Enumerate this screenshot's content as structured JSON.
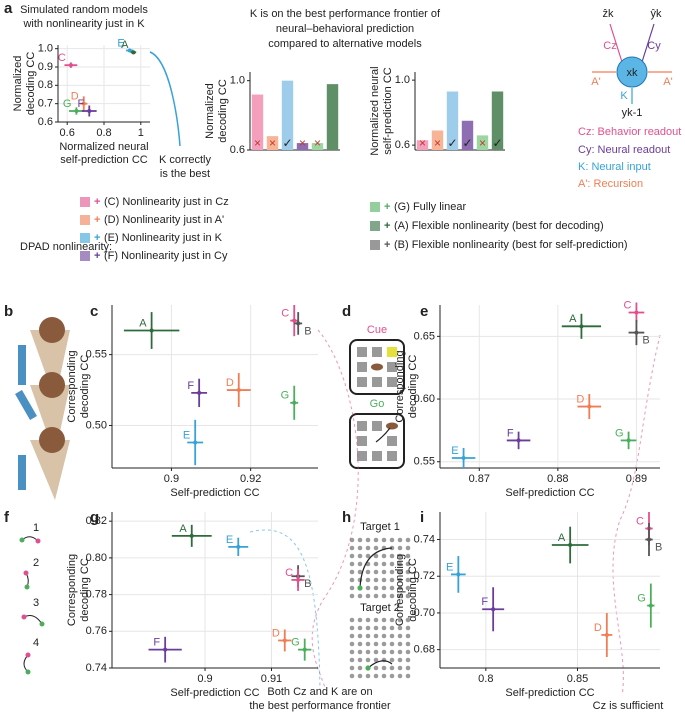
{
  "panel_labels": [
    "a",
    "b",
    "c",
    "d",
    "e",
    "f",
    "g",
    "h",
    "i"
  ],
  "header": [
    "K is on the best performance frontier of",
    "neural–behavioral prediction",
    "compared to alternative models"
  ],
  "annotations": {
    "a_note": [
      "K correctly",
      "is the best"
    ],
    "bottom_left": [
      "Both Cz and K are on",
      "the best performance frontier"
    ],
    "bottom_right": "Cz is sufficient"
  },
  "diagram": {
    "labels": [
      "ẑk",
      "ŷk",
      "Cz",
      "Cy",
      "xk",
      "A'",
      "A'",
      "K",
      "yk-1"
    ],
    "legend": [
      "Cz: Behavior readout",
      "Cy: Neural readout",
      "K: Neural input",
      "A': Recursion"
    ]
  },
  "legend": {
    "title": "DPAD nonlinearity:",
    "items": [
      {
        "marker": "+",
        "text": "(C) Nonlinearity just in Cz",
        "color": "#e0508f"
      },
      {
        "marker": "+",
        "text": "(D) Nonlinearity just in A'",
        "color": "#f07e55"
      },
      {
        "marker": "+",
        "text": "(E) Nonlinearity just in K",
        "color": "#36a2d8"
      },
      {
        "marker": "+",
        "text": "(F) Nonlinearity just in Cy",
        "color": "#6a3d9a"
      },
      {
        "marker": "+",
        "text": "(G) Fully linear",
        "color": "#4cae5c"
      },
      {
        "marker": "+",
        "text": "(A) Flexible nonlinearity (best for decoding)",
        "color": "#2e6b3a"
      },
      {
        "marker": "+",
        "text": "(B) Flexible nonlinearity (best for self-prediction)",
        "color": "#555555"
      }
    ]
  },
  "illustrations": {
    "cue": "Cue",
    "go": "Go",
    "steps": [
      "1",
      "2",
      "3",
      "4"
    ],
    "targets": [
      "Target 1",
      "Target 2"
    ]
  },
  "chart_data": [
    {
      "type": "scatter",
      "title": [
        "Simulated random models",
        "with nonlinearity just in K"
      ],
      "xlabel": [
        "Normalized neural",
        "self-prediction CC"
      ],
      "ylabel": [
        "Normalized",
        "decoding CC"
      ],
      "xlim": [
        0.55,
        1.05
      ],
      "xticks": [
        0.6,
        0.8,
        1
      ],
      "ylim": [
        0.6,
        1.02
      ],
      "yticks": [
        0.6,
        0.7,
        0.8,
        0.9,
        {
          "value": 1,
          "label": "1.0"
        }
      ],
      "grid": true,
      "series": [
        {
          "name": "C",
          "color": "#e0508f",
          "x": [
            0.62
          ],
          "y": [
            0.91
          ],
          "xerr": [
            0.035
          ],
          "yerr": [
            0.015
          ]
        },
        {
          "name": "D",
          "color": "#f07e55",
          "x": [
            0.69
          ],
          "y": [
            0.7
          ],
          "xerr": [
            0.02
          ],
          "yerr": [
            0.04
          ]
        },
        {
          "name": "G",
          "color": "#4cae5c",
          "x": [
            0.65
          ],
          "y": [
            0.66
          ],
          "xerr": [
            0.04
          ],
          "yerr": [
            0.02
          ]
        },
        {
          "name": "F",
          "color": "#6a3d9a",
          "x": [
            0.72
          ],
          "y": [
            0.66
          ],
          "xerr": [
            0.04
          ],
          "yerr": [
            0.03
          ]
        },
        {
          "name": "E",
          "color": "#36a2d8",
          "x": [
            0.94
          ],
          "y": [
            0.99
          ],
          "xerr": [
            0.02
          ],
          "yerr": [
            0.01
          ]
        },
        {
          "name": "A",
          "color": "#2e6b3a",
          "x": [
            0.96
          ],
          "y": [
            0.98
          ],
          "xerr": [
            0.015
          ],
          "yerr": [
            0.01
          ]
        }
      ]
    },
    {
      "type": "bar",
      "ylabel": [
        "Normalized",
        "decoding CC"
      ],
      "categories": [
        null,
        null,
        null,
        null,
        null,
        null
      ],
      "values": [
        0.92,
        0.68,
        1.0,
        0.64,
        0.64,
        0.98
      ],
      "colors": [
        "#f4a0bd",
        "#f8b497",
        "#9dcdeb",
        "#8e6db3",
        "#9ed6a3",
        "#5f8f66"
      ],
      "markers": [
        "×",
        "×",
        "✓",
        "×",
        "×",
        null
      ],
      "ylim": [
        0.6,
        1.05
      ],
      "yticks": [
        0.6,
        {
          "value": 1,
          "label": "1.0"
        }
      ]
    },
    {
      "type": "bar",
      "ylabel": [
        "Normalized neural",
        "self-prediction CC"
      ],
      "categories": [
        null,
        null,
        null,
        null,
        null,
        null
      ],
      "values": [
        0.63,
        0.69,
        0.93,
        0.75,
        0.66,
        0.93
      ],
      "colors": [
        "#f4a0bd",
        "#f8b497",
        "#9dcdeb",
        "#8e6db3",
        "#9ed6a3",
        "#5f8f66"
      ],
      "markers": [
        "×",
        "×",
        "✓",
        "✓",
        "×",
        "✓"
      ],
      "ylim": [
        0.57,
        1.05
      ],
      "yticks": [
        0.6,
        {
          "value": 1,
          "label": "1.0"
        }
      ]
    },
    {
      "type": "scatter",
      "xlabel": [
        "Self-prediction CC"
      ],
      "ylabel": [
        "Corresponding",
        "decoding CC"
      ],
      "xlim": [
        0.885,
        0.937
      ],
      "xticks": [
        0.9,
        0.92
      ],
      "ylim": [
        0.47,
        0.585
      ],
      "yticks": [
        {
          "value": 0.5,
          "label": "0.50"
        },
        0.55
      ],
      "grid": true,
      "series": [
        {
          "name": "A",
          "color": "#2e6b3a",
          "x": [
            0.895
          ],
          "y": [
            0.567
          ],
          "xerr": [
            0.007
          ],
          "yerr": [
            0.013
          ]
        },
        {
          "name": "C",
          "color": "#e0508f",
          "x": [
            0.931
          ],
          "y": [
            0.574
          ],
          "xerr": [
            0.001
          ],
          "yerr": [
            0.011
          ]
        },
        {
          "name": "B",
          "color": "#555555",
          "x": [
            0.932
          ],
          "y": [
            0.572
          ],
          "xerr": [
            0.001
          ],
          "yerr": [
            0.008
          ]
        },
        {
          "name": "D",
          "color": "#f07e55",
          "x": [
            0.917
          ],
          "y": [
            0.525
          ],
          "xerr": [
            0.003
          ],
          "yerr": [
            0.012
          ]
        },
        {
          "name": "F",
          "color": "#6a3d9a",
          "x": [
            0.907
          ],
          "y": [
            0.523
          ],
          "xerr": [
            0.002
          ],
          "yerr": [
            0.01
          ]
        },
        {
          "name": "E",
          "color": "#36a2d8",
          "x": [
            0.906
          ],
          "y": [
            0.488
          ],
          "xerr": [
            0.002
          ],
          "yerr": [
            0.016
          ]
        },
        {
          "name": "G",
          "color": "#4cae5c",
          "x": [
            0.931
          ],
          "y": [
            0.516
          ],
          "xerr": [
            0.001
          ],
          "yerr": [
            0.012
          ]
        }
      ]
    },
    {
      "type": "scatter",
      "xlabel": [
        "Self-prediction CC"
      ],
      "ylabel": [
        "Corresponding",
        "decoding CC"
      ],
      "xlim": [
        0.865,
        0.893
      ],
      "xticks": [
        0.87,
        0.88,
        0.89
      ],
      "ylim": [
        0.545,
        0.675
      ],
      "yticks": [
        0.55,
        {
          "value": 0.6,
          "label": "0.60"
        },
        0.65
      ],
      "grid": true,
      "series": [
        {
          "name": "A",
          "color": "#2e6b3a",
          "x": [
            0.883
          ],
          "y": [
            0.658
          ],
          "xerr": [
            0.0025
          ],
          "yerr": [
            0.01
          ]
        },
        {
          "name": "C",
          "color": "#e0508f",
          "x": [
            0.89
          ],
          "y": [
            0.669
          ],
          "xerr": [
            0.001
          ],
          "yerr": [
            0.008
          ]
        },
        {
          "name": "B",
          "color": "#555555",
          "x": [
            0.89
          ],
          "y": [
            0.653
          ],
          "xerr": [
            0.001
          ],
          "yerr": [
            0.01
          ]
        },
        {
          "name": "D",
          "color": "#f07e55",
          "x": [
            0.884
          ],
          "y": [
            0.594
          ],
          "xerr": [
            0.0015
          ],
          "yerr": [
            0.01
          ]
        },
        {
          "name": "F",
          "color": "#6a3d9a",
          "x": [
            0.875
          ],
          "y": [
            0.567
          ],
          "xerr": [
            0.0015
          ],
          "yerr": [
            0.007
          ]
        },
        {
          "name": "G",
          "color": "#4cae5c",
          "x": [
            0.889
          ],
          "y": [
            0.567
          ],
          "xerr": [
            0.001
          ],
          "yerr": [
            0.007
          ]
        },
        {
          "name": "E",
          "color": "#36a2d8",
          "x": [
            0.868
          ],
          "y": [
            0.553
          ],
          "xerr": [
            0.0015
          ],
          "yerr": [
            0.008
          ]
        }
      ]
    },
    {
      "type": "scatter",
      "xlabel": [
        "Self-prediction CC"
      ],
      "ylabel": [
        "Corresponding",
        "decoding CC"
      ],
      "xlim": [
        0.886,
        0.917
      ],
      "xticks": [
        0.9,
        0.91
      ],
      "ylim": [
        0.74,
        0.825
      ],
      "yticks": [
        0.74,
        0.76,
        0.78,
        {
          "value": 0.8,
          "label": "0.80"
        },
        0.82
      ],
      "grid": true,
      "series": [
        {
          "name": "A",
          "color": "#2e6b3a",
          "x": [
            0.898
          ],
          "y": [
            0.812
          ],
          "xerr": [
            0.003
          ],
          "yerr": [
            0.006
          ]
        },
        {
          "name": "E",
          "color": "#36a2d8",
          "x": [
            0.905
          ],
          "y": [
            0.806
          ],
          "xerr": [
            0.0015
          ],
          "yerr": [
            0.005
          ]
        },
        {
          "name": "B",
          "color": "#555555",
          "x": [
            0.914
          ],
          "y": [
            0.79
          ],
          "xerr": [
            0.001
          ],
          "yerr": [
            0.006
          ]
        },
        {
          "name": "C",
          "color": "#e0508f",
          "x": [
            0.914
          ],
          "y": [
            0.788
          ],
          "xerr": [
            0.001
          ],
          "yerr": [
            0.006
          ]
        },
        {
          "name": "D",
          "color": "#f07e55",
          "x": [
            0.912
          ],
          "y": [
            0.755
          ],
          "xerr": [
            0.001
          ],
          "yerr": [
            0.006
          ]
        },
        {
          "name": "G",
          "color": "#4cae5c",
          "x": [
            0.915
          ],
          "y": [
            0.75
          ],
          "xerr": [
            0.001
          ],
          "yerr": [
            0.006
          ]
        },
        {
          "name": "F",
          "color": "#6a3d9a",
          "x": [
            0.894
          ],
          "y": [
            0.75
          ],
          "xerr": [
            0.0025
          ],
          "yerr": [
            0.007
          ]
        }
      ]
    },
    {
      "type": "scatter",
      "xlabel": [
        "Self-prediction CC"
      ],
      "ylabel": [
        "Corresponding",
        "decoding CC"
      ],
      "xlim": [
        0.775,
        0.895
      ],
      "xticks": [
        0.8,
        0.85
      ],
      "ylim": [
        0.67,
        0.755
      ],
      "yticks": [
        0.68,
        {
          "value": 0.7,
          "label": "0.70"
        },
        0.72,
        0.74
      ],
      "grid": true,
      "series": [
        {
          "name": "A",
          "color": "#2e6b3a",
          "x": [
            0.846
          ],
          "y": [
            0.737
          ],
          "xerr": [
            0.01
          ],
          "yerr": [
            0.01
          ]
        },
        {
          "name": "C",
          "color": "#e0508f",
          "x": [
            0.889
          ],
          "y": [
            0.746
          ],
          "xerr": [
            0.002
          ],
          "yerr": [
            0.009
          ]
        },
        {
          "name": "B",
          "color": "#555555",
          "x": [
            0.889
          ],
          "y": [
            0.74
          ],
          "xerr": [
            0.002
          ],
          "yerr": [
            0.009
          ]
        },
        {
          "name": "E",
          "color": "#36a2d8",
          "x": [
            0.785
          ],
          "y": [
            0.721
          ],
          "xerr": [
            0.004
          ],
          "yerr": [
            0.01
          ]
        },
        {
          "name": "F",
          "color": "#6a3d9a",
          "x": [
            0.804
          ],
          "y": [
            0.702
          ],
          "xerr": [
            0.006
          ],
          "yerr": [
            0.012
          ]
        },
        {
          "name": "D",
          "color": "#f07e55",
          "x": [
            0.866
          ],
          "y": [
            0.688
          ],
          "xerr": [
            0.003
          ],
          "yerr": [
            0.012
          ]
        },
        {
          "name": "G",
          "color": "#4cae5c",
          "x": [
            0.89
          ],
          "y": [
            0.704
          ],
          "xerr": [
            0.002
          ],
          "yerr": [
            0.012
          ]
        }
      ]
    }
  ]
}
